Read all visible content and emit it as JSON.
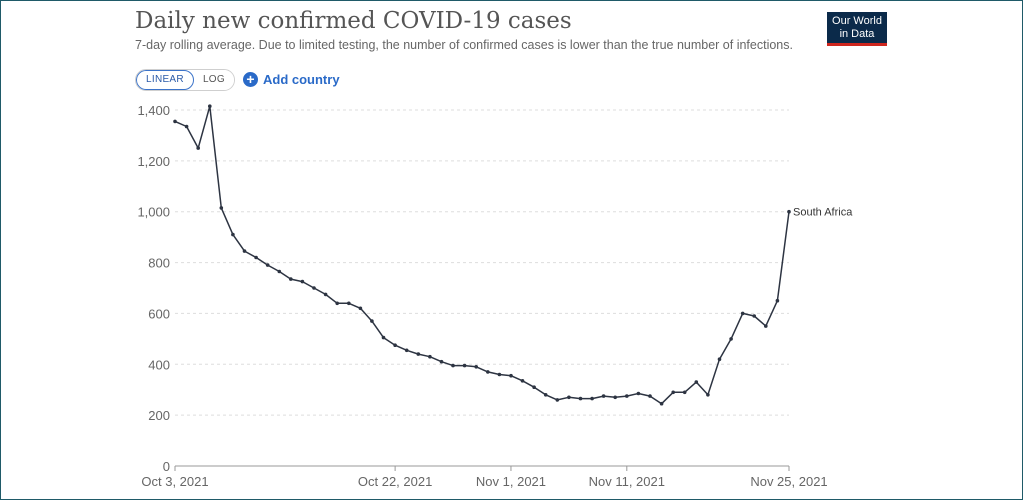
{
  "header": {
    "title": "Daily new confirmed COVID-19 cases",
    "subtitle": "7-day rolling average. Due to limited testing, the number of confirmed cases is lower than the true number of infections."
  },
  "logo": {
    "line1": "Our World",
    "line2": "in Data"
  },
  "controls": {
    "linear_label": "LINEAR",
    "log_label": "LOG",
    "add_country_label": "Add country",
    "selected_scale": "LINEAR"
  },
  "colors": {
    "line": "#2d3442",
    "grid": "#dddddd",
    "accent": "#2a6ac8",
    "logo_bg": "#0b2a4a",
    "logo_bar": "#ce261e"
  },
  "chart_data": {
    "type": "line",
    "title": "Daily new confirmed COVID-19 cases",
    "xlabel": "",
    "ylabel": "",
    "ylim": [
      0,
      1400
    ],
    "yticks": [
      0,
      200,
      400,
      600,
      800,
      1000,
      1200,
      1400
    ],
    "ytick_labels": [
      "0",
      "200",
      "400",
      "600",
      "800",
      "1,000",
      "1,200",
      "1,400"
    ],
    "x_range": [
      "2021-10-03",
      "2021-11-25"
    ],
    "xtick_labels": [
      {
        "date": "2021-10-03",
        "label": "Oct 3, 2021"
      },
      {
        "date": "2021-10-22",
        "label": "Oct 22, 2021"
      },
      {
        "date": "2021-11-01",
        "label": "Nov 1, 2021"
      },
      {
        "date": "2021-11-11",
        "label": "Nov 11, 2021"
      },
      {
        "date": "2021-11-25",
        "label": "Nov 25, 2021"
      }
    ],
    "grid": "horizontal dashed",
    "series": [
      {
        "name": "South Africa",
        "x": [
          "2021-10-03",
          "2021-10-04",
          "2021-10-05",
          "2021-10-06",
          "2021-10-07",
          "2021-10-08",
          "2021-10-09",
          "2021-10-10",
          "2021-10-11",
          "2021-10-12",
          "2021-10-13",
          "2021-10-14",
          "2021-10-15",
          "2021-10-16",
          "2021-10-17",
          "2021-10-18",
          "2021-10-19",
          "2021-10-20",
          "2021-10-21",
          "2021-10-22",
          "2021-10-23",
          "2021-10-24",
          "2021-10-25",
          "2021-10-26",
          "2021-10-27",
          "2021-10-28",
          "2021-10-29",
          "2021-10-30",
          "2021-10-31",
          "2021-11-01",
          "2021-11-02",
          "2021-11-03",
          "2021-11-04",
          "2021-11-05",
          "2021-11-06",
          "2021-11-07",
          "2021-11-08",
          "2021-11-09",
          "2021-11-10",
          "2021-11-11",
          "2021-11-12",
          "2021-11-13",
          "2021-11-14",
          "2021-11-15",
          "2021-11-16",
          "2021-11-17",
          "2021-11-18",
          "2021-11-19",
          "2021-11-20",
          "2021-11-21",
          "2021-11-22",
          "2021-11-23",
          "2021-11-24",
          "2021-11-25"
        ],
        "values": [
          1355,
          1335,
          1250,
          1415,
          1015,
          910,
          845,
          820,
          790,
          765,
          735,
          725,
          700,
          675,
          640,
          640,
          620,
          570,
          505,
          475,
          455,
          440,
          430,
          410,
          395,
          395,
          390,
          370,
          360,
          355,
          335,
          310,
          280,
          260,
          270,
          265,
          265,
          275,
          270,
          275,
          285,
          275,
          245,
          290,
          290,
          330,
          280,
          420,
          500,
          600,
          590,
          550,
          650,
          1000
        ]
      }
    ]
  }
}
